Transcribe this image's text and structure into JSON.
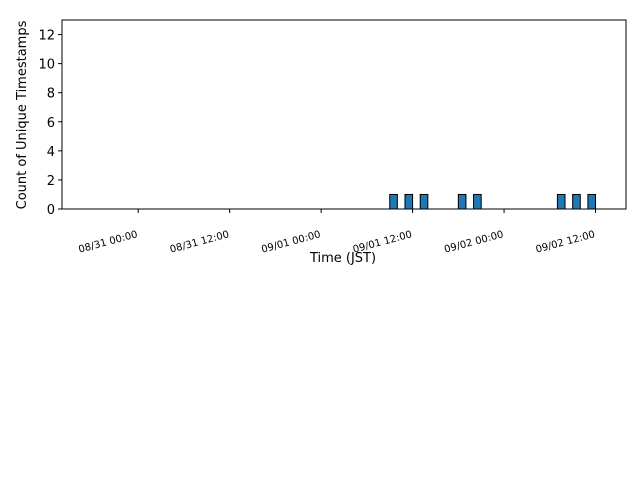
{
  "chart_data": {
    "type": "bar",
    "x_label": "Time (JST)",
    "y_label": "Count of Unique Timestamps",
    "x": [
      "09/01 09:00",
      "09/01 11:00",
      "09/01 13:00",
      "09/01 18:00",
      "09/01 20:00",
      "09/02 07:00",
      "09/02 09:00",
      "09/02 11:00"
    ],
    "values": [
      1,
      1,
      1,
      1,
      1,
      1,
      1,
      1
    ],
    "color": "#1f77b4",
    "xlim": [
      "08/30 14:00",
      "09/02 16:00"
    ],
    "xticks": [
      "08/31 00:00",
      "08/31 12:00",
      "09/01 00:00",
      "09/01 12:00",
      "09/02 00:00",
      "09/02 12:00"
    ],
    "ylim": [
      0,
      13
    ],
    "yticks": [
      0,
      2,
      4,
      6,
      8,
      10,
      12
    ]
  }
}
